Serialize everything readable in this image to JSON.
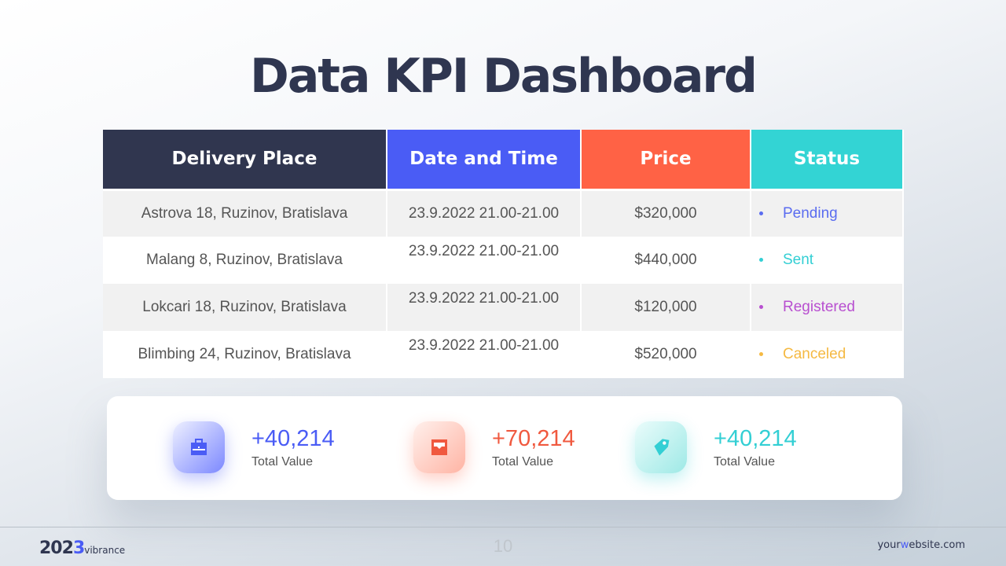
{
  "title": "Data KPI Dashboard",
  "table": {
    "headers": [
      "Delivery Place",
      "Date and Time",
      "Price",
      "Status"
    ],
    "header_colors": [
      "#30364f",
      "#4a5cf5",
      "#ff6245",
      "#33d4d4"
    ],
    "rows": [
      {
        "place": "Astrova 18, Ruzinov, Bratislava",
        "date": "23.9.2022 21.00-21.00",
        "price": "$320,000",
        "status": "Pending",
        "color": "#5a6cf0"
      },
      {
        "place": "Malang 8, Ruzinov, Bratislava",
        "date": "23.9.2022 21.00-21.00",
        "price": "$440,000",
        "status": "Sent",
        "color": "#33cfd4"
      },
      {
        "place": "Lokcari 18, Ruzinov, Bratislava",
        "date": "23.9.2022 21.00-21.00",
        "price": "$120,000",
        "status": "Registered",
        "color": "#b84fd0"
      },
      {
        "place": "Blimbing 24, Ruzinov, Bratislava",
        "date": "23.9.2022 21.00-21.00",
        "price": "$520,000",
        "status": "Canceled",
        "color": "#f5b942"
      }
    ]
  },
  "kpis": [
    {
      "value": "+40,214",
      "label": "Total Value",
      "icon": "briefcase-icon",
      "color": "#4a5cf5"
    },
    {
      "value": "+70,214",
      "label": "Total Value",
      "icon": "inbox-icon",
      "color": "#f0593f"
    },
    {
      "value": "+40,214",
      "label": "Total Value",
      "icon": "tag-icon",
      "color": "#33cfd4"
    }
  ],
  "footer": {
    "year_a": "202",
    "year_b": "3",
    "brand": "vibrance",
    "page": "10",
    "site_a": "your",
    "site_b": "w",
    "site_c": "ebsite.com"
  }
}
